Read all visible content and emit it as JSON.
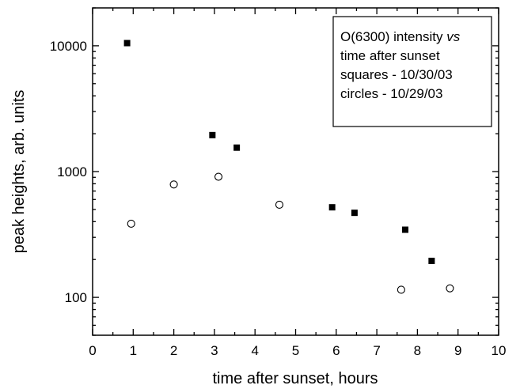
{
  "chart_data": {
    "type": "scatter",
    "title": "",
    "xlabel": "time after sunset, hours",
    "ylabel": "peak heights, arb. units",
    "xlim": [
      0,
      10
    ],
    "ylim": [
      50,
      20000
    ],
    "yscale": "log",
    "x_ticks": [
      "0",
      "1",
      "2",
      "3",
      "4",
      "5",
      "6",
      "7",
      "8",
      "9",
      "10"
    ],
    "y_ticks": [
      {
        "value": 100,
        "label": "100"
      },
      {
        "value": 1000,
        "label": "1000"
      },
      {
        "value": 10000,
        "label": "10000"
      }
    ],
    "legend": {
      "placement": "top-right",
      "lines": [
        {
          "parts": [
            {
              "text": "O(6300) intensity ",
              "italic": false
            },
            {
              "text": "vs",
              "italic": true
            }
          ]
        },
        {
          "parts": [
            {
              "text": "time after sunset",
              "italic": false
            }
          ]
        },
        {
          "parts": [
            {
              "text": "squares - 10/30/03",
              "italic": false
            }
          ]
        },
        {
          "parts": [
            {
              "text": "circles - 10/29/03",
              "italic": false
            }
          ]
        }
      ]
    },
    "series": [
      {
        "marker": "filled-square",
        "color": "#000000",
        "points": [
          {
            "x": 0.85,
            "y": 10500
          },
          {
            "x": 2.95,
            "y": 1950
          },
          {
            "x": 3.55,
            "y": 1550
          },
          {
            "x": 5.9,
            "y": 520
          },
          {
            "x": 6.45,
            "y": 470
          },
          {
            "x": 7.7,
            "y": 345
          },
          {
            "x": 8.35,
            "y": 195
          }
        ]
      },
      {
        "marker": "open-circle",
        "color": "#000000",
        "points": [
          {
            "x": 0.95,
            "y": 385
          },
          {
            "x": 2.0,
            "y": 790
          },
          {
            "x": 3.1,
            "y": 910
          },
          {
            "x": 4.6,
            "y": 545
          },
          {
            "x": 7.6,
            "y": 115
          },
          {
            "x": 8.8,
            "y": 118
          }
        ]
      }
    ]
  }
}
